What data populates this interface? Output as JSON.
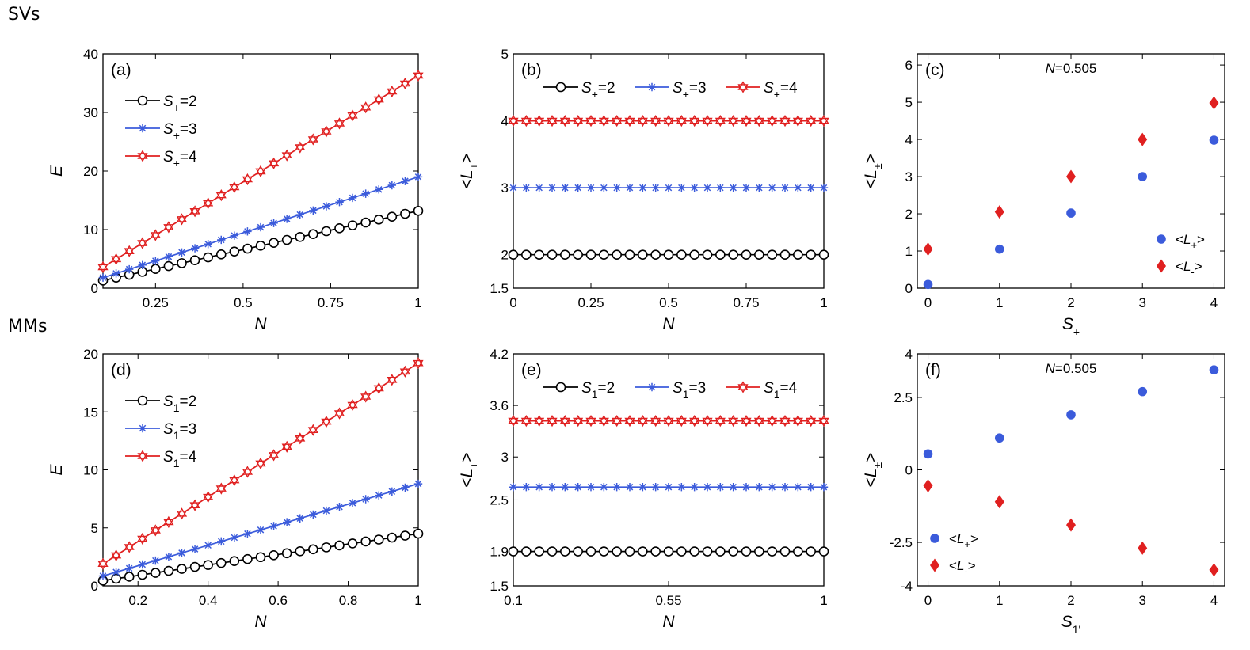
{
  "row_labels": {
    "top": "SVs",
    "bottom": "MMs"
  },
  "colors": {
    "black": "#000000",
    "blue": "#3b5bdb",
    "red": "#e02020"
  },
  "chart_data": [
    {
      "id": "a",
      "type": "line",
      "panel_label": "(a)",
      "xlabel": "N",
      "ylabel": "E",
      "xlim": [
        0.1,
        1
      ],
      "ylim": [
        0,
        40
      ],
      "xticks": [
        0.25,
        0.5,
        0.75,
        1
      ],
      "xticklabels": [
        "0.25",
        "0.5",
        "0.75",
        "1"
      ],
      "yticks": [
        0,
        10,
        20,
        30,
        40
      ],
      "yticklabels": [
        "0",
        "10",
        "20",
        "30",
        "40"
      ],
      "legend": {
        "position": "upper-left",
        "layout": "vertical"
      },
      "series": [
        {
          "name": "S+=2",
          "sym": "S",
          "sub": "+",
          "val": "=2",
          "color": "black",
          "marker": "circle",
          "start": 1.3,
          "end": 13.2
        },
        {
          "name": "S+=3",
          "sym": "S",
          "sub": "+",
          "val": "=3",
          "color": "blue",
          "marker": "asterisk",
          "start": 1.8,
          "end": 19.0
        },
        {
          "name": "S+=4",
          "sym": "S",
          "sub": "+",
          "val": "=4",
          "color": "red",
          "marker": "star",
          "start": 3.6,
          "end": 36.3
        }
      ]
    },
    {
      "id": "b",
      "type": "line",
      "panel_label": "(b)",
      "xlabel": "N",
      "ylabel": "<L+>",
      "xlim": [
        0,
        1
      ],
      "ylim": [
        1.5,
        5
      ],
      "xticks": [
        0,
        0.25,
        0.5,
        0.75,
        1
      ],
      "xticklabels": [
        "0",
        "0.25",
        "0.5",
        "0.75",
        "1"
      ],
      "yticks": [
        1.5,
        2,
        3,
        4,
        5
      ],
      "yticklabels": [
        "1.5",
        "2",
        "3",
        "4",
        "5"
      ],
      "legend": {
        "position": "top",
        "layout": "horizontal"
      },
      "series": [
        {
          "name": "S+=2",
          "sym": "S",
          "sub": "+",
          "val": "=2",
          "color": "black",
          "marker": "circle",
          "start": 2.0,
          "end": 2.0
        },
        {
          "name": "S+=3",
          "sym": "S",
          "sub": "+",
          "val": "=3",
          "color": "blue",
          "marker": "asterisk",
          "start": 3.0,
          "end": 3.0
        },
        {
          "name": "S+=4",
          "sym": "S",
          "sub": "+",
          "val": "=4",
          "color": "red",
          "marker": "star",
          "start": 4.0,
          "end": 4.0
        }
      ]
    },
    {
      "id": "c",
      "type": "scatter",
      "panel_label": "(c)",
      "annotation": "N=0.505",
      "xlabel": "S+",
      "ylabel": "<L±>",
      "xlim": [
        -0.15,
        4.15
      ],
      "ylim": [
        0,
        6.3
      ],
      "xticks": [
        0,
        1,
        2,
        3,
        4
      ],
      "xticklabels": [
        "0",
        "1",
        "2",
        "3",
        "4"
      ],
      "yticks": [
        0,
        1,
        2,
        3,
        4,
        5,
        6
      ],
      "yticklabels": [
        "0",
        "1",
        "2",
        "3",
        "4",
        "5",
        "6"
      ],
      "legend": {
        "position": "lower-right",
        "layout": "vertical"
      },
      "series": [
        {
          "name": "<L+>",
          "sub": "+",
          "color": "blue",
          "marker": "dot",
          "x": [
            0,
            1,
            2,
            3,
            4
          ],
          "y": [
            0.1,
            1.05,
            2.02,
            3.0,
            3.98
          ]
        },
        {
          "name": "<L->",
          "sub": "-",
          "color": "red",
          "marker": "diamond",
          "x": [
            0,
            1,
            2,
            3,
            4
          ],
          "y": [
            1.05,
            2.05,
            3.0,
            4.0,
            4.98
          ]
        }
      ]
    },
    {
      "id": "d",
      "type": "line",
      "panel_label": "(d)",
      "xlabel": "N",
      "ylabel": "E",
      "xlim": [
        0.1,
        1
      ],
      "ylim": [
        0,
        20
      ],
      "xticks": [
        0.2,
        0.4,
        0.6,
        0.8,
        1
      ],
      "xticklabels": [
        "0.2",
        "0.4",
        "0.6",
        "0.8",
        "1"
      ],
      "yticks": [
        0,
        5,
        10,
        15,
        20
      ],
      "yticklabels": [
        "0",
        "5",
        "10",
        "15",
        "20"
      ],
      "legend": {
        "position": "upper-left",
        "layout": "vertical"
      },
      "series": [
        {
          "name": "S1=2",
          "sym": "S",
          "sub": "1",
          "val": "=2",
          "color": "black",
          "marker": "circle",
          "start": 0.45,
          "end": 4.5
        },
        {
          "name": "S1=3",
          "sym": "S",
          "sub": "1",
          "val": "=3",
          "color": "blue",
          "marker": "asterisk",
          "start": 0.85,
          "end": 8.8
        },
        {
          "name": "S1=4",
          "sym": "S",
          "sub": "1",
          "val": "=4",
          "color": "red",
          "marker": "star",
          "start": 1.9,
          "end": 19.2
        }
      ]
    },
    {
      "id": "e",
      "type": "line",
      "panel_label": "(e)",
      "xlabel": "N",
      "ylabel": "<L+>",
      "xlim": [
        0.1,
        1
      ],
      "ylim": [
        1.5,
        4.2
      ],
      "xticks": [
        0.1,
        0.55,
        1
      ],
      "xticklabels": [
        "0.1",
        "0.55",
        "1"
      ],
      "yticks": [
        1.5,
        1.9,
        2.5,
        3,
        3.6,
        4.2
      ],
      "yticklabels": [
        "1.5",
        "1.9",
        "2.5",
        "3",
        "3.6",
        "4.2"
      ],
      "legend": {
        "position": "top",
        "layout": "horizontal"
      },
      "series": [
        {
          "name": "S1=2",
          "sym": "S",
          "sub": "1",
          "val": "=2",
          "color": "black",
          "marker": "circle",
          "start": 1.9,
          "end": 1.9
        },
        {
          "name": "S1=3",
          "sym": "S",
          "sub": "1",
          "val": "=3",
          "color": "blue",
          "marker": "asterisk",
          "start": 2.65,
          "end": 2.65
        },
        {
          "name": "S1=4",
          "sym": "S",
          "sub": "1",
          "val": "=4",
          "color": "red",
          "marker": "star",
          "start": 3.42,
          "end": 3.42
        }
      ]
    },
    {
      "id": "f",
      "type": "scatter",
      "panel_label": "(f)",
      "annotation": "N=0.505",
      "xlabel": "S1'",
      "ylabel": "<L±>",
      "xlim": [
        -0.15,
        4.15
      ],
      "ylim": [
        -4,
        4
      ],
      "xticks": [
        0,
        1,
        2,
        3,
        4
      ],
      "xticklabels": [
        "0",
        "1",
        "2",
        "3",
        "4"
      ],
      "yticks": [
        -4,
        -2.5,
        0,
        2.5,
        4
      ],
      "yticklabels": [
        "-4",
        "-2.5",
        "0",
        "2.5",
        "4"
      ],
      "legend": {
        "position": "lower-left",
        "layout": "vertical"
      },
      "series": [
        {
          "name": "<L+>",
          "sub": "+",
          "color": "blue",
          "marker": "dot",
          "x": [
            0,
            1,
            2,
            3,
            4
          ],
          "y": [
            0.55,
            1.1,
            1.9,
            2.7,
            3.45
          ]
        },
        {
          "name": "<L->",
          "sub": "-",
          "color": "red",
          "marker": "diamond",
          "x": [
            0,
            1,
            2,
            3,
            4
          ],
          "y": [
            -0.55,
            -1.1,
            -1.9,
            -2.7,
            -3.45
          ]
        }
      ]
    }
  ]
}
